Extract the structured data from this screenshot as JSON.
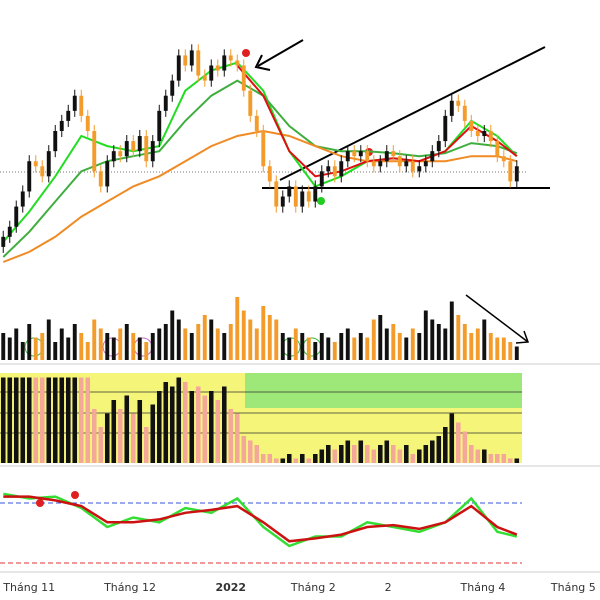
{
  "chart_data": {
    "type": "candlestick",
    "xlim": [
      -0.5,
      91.8
    ],
    "xticks": [
      {
        "value": 4,
        "label": "Tháng 11"
      },
      {
        "value": 19.5,
        "label": "Tháng 12"
      },
      {
        "value": 35,
        "label": "2022"
      },
      {
        "value": 47.7,
        "label": "Tháng 2"
      },
      {
        "value": 59.2,
        "label": "2"
      },
      {
        "value": 73.8,
        "label": "Tháng 4"
      },
      {
        "value": 87.7,
        "label": "Tháng 5"
      }
    ],
    "ylim": [
      0,
      260
    ],
    "up_color": "#111111",
    "down_color": "#f39c2b",
    "open": [
      15,
      25,
      35,
      55,
      70,
      100,
      95,
      85,
      110,
      130,
      140,
      150,
      165,
      145,
      130,
      90,
      75,
      100,
      110,
      105,
      120,
      110,
      125,
      100,
      120,
      150,
      165,
      180,
      205,
      195,
      210,
      185,
      180,
      195,
      190,
      205,
      200,
      195,
      170,
      145,
      130,
      95,
      80,
      55,
      65,
      75,
      55,
      70,
      60,
      75,
      90,
      95,
      85,
      100,
      110,
      105,
      110,
      100,
      95,
      100,
      110,
      105,
      95,
      100,
      90,
      95,
      100,
      110,
      120,
      145,
      160,
      155,
      140,
      130,
      125,
      130,
      120,
      105,
      100,
      80
    ],
    "high": [
      31,
      41,
      61,
      76,
      106,
      106,
      101,
      116,
      136,
      146,
      156,
      171,
      171,
      151,
      136,
      96,
      106,
      116,
      116,
      126,
      126,
      131,
      131,
      126,
      156,
      171,
      186,
      211,
      211,
      216,
      216,
      191,
      201,
      201,
      211,
      211,
      206,
      201,
      176,
      151,
      136,
      101,
      86,
      71,
      81,
      81,
      76,
      76,
      81,
      96,
      101,
      101,
      106,
      116,
      116,
      116,
      116,
      106,
      106,
      116,
      116,
      111,
      106,
      106,
      101,
      106,
      116,
      126,
      151,
      166,
      166,
      161,
      146,
      136,
      136,
      136,
      126,
      111,
      106,
      101
    ],
    "low": [
      9,
      19,
      29,
      49,
      64,
      89,
      79,
      79,
      104,
      124,
      134,
      144,
      139,
      124,
      84,
      69,
      69,
      94,
      99,
      99,
      104,
      104,
      94,
      94,
      114,
      144,
      159,
      174,
      189,
      189,
      179,
      174,
      174,
      184,
      184,
      194,
      189,
      164,
      139,
      124,
      89,
      74,
      49,
      49,
      59,
      49,
      49,
      54,
      54,
      69,
      84,
      79,
      79,
      94,
      99,
      99,
      94,
      89,
      89,
      94,
      99,
      89,
      89,
      84,
      84,
      89,
      94,
      104,
      114,
      139,
      149,
      134,
      124,
      119,
      119,
      114,
      99,
      94,
      74,
      74
    ],
    "close": [
      25,
      35,
      55,
      70,
      100,
      95,
      85,
      110,
      130,
      140,
      150,
      165,
      145,
      130,
      90,
      75,
      100,
      110,
      105,
      120,
      110,
      125,
      100,
      120,
      150,
      165,
      180,
      205,
      195,
      210,
      185,
      180,
      195,
      190,
      205,
      200,
      195,
      170,
      145,
      130,
      95,
      80,
      55,
      65,
      75,
      55,
      70,
      60,
      75,
      90,
      95,
      85,
      100,
      110,
      105,
      110,
      100,
      95,
      100,
      110,
      105,
      95,
      100,
      90,
      95,
      100,
      110,
      120,
      145,
      160,
      155,
      140,
      130,
      125,
      130,
      120,
      105,
      100,
      80,
      95
    ],
    "series": [
      {
        "color": "#22dd22",
        "x": [
          0,
          4,
          8,
          12,
          16,
          20,
          24,
          28,
          32,
          36,
          40,
          44,
          48,
          52,
          56,
          60,
          64,
          68,
          72,
          76,
          79
        ],
        "values": [
          20,
          50,
          85,
          125,
          115,
          110,
          115,
          170,
          190,
          198,
          170,
          110,
          75,
          85,
          100,
          103,
          100,
          110,
          140,
          125,
          105
        ]
      },
      {
        "color": "#3fae3f",
        "x": [
          0,
          4,
          8,
          12,
          16,
          20,
          24,
          28,
          32,
          36,
          40,
          44,
          48,
          52,
          56,
          60,
          64,
          68,
          72,
          76,
          79
        ],
        "values": [
          5,
          30,
          60,
          90,
          100,
          105,
          110,
          140,
          165,
          180,
          165,
          135,
          115,
          110,
          110,
          108,
          105,
          108,
          118,
          115,
          108
        ]
      },
      {
        "color": "#f08a24",
        "x": [
          0,
          4,
          8,
          12,
          16,
          20,
          24,
          28,
          32,
          36,
          40,
          44,
          48,
          52,
          56,
          60,
          64,
          68,
          72,
          76,
          79
        ],
        "values": [
          0,
          10,
          25,
          45,
          60,
          75,
          85,
          100,
          115,
          125,
          130,
          125,
          115,
          105,
          100,
          100,
          100,
          100,
          105,
          105,
          100
        ]
      },
      {
        "color": "#dd1111",
        "x": [
          36,
          40,
          44,
          48,
          52,
          56,
          60,
          64,
          68,
          72,
          76,
          79
        ],
        "values": [
          195,
          165,
          110,
          85,
          90,
          100,
          103,
          100,
          110,
          135,
          120,
          105
        ]
      }
    ],
    "volume": {
      "ylim": [
        0,
        100
      ],
      "values": [
        30,
        25,
        35,
        20,
        40,
        25,
        30,
        45,
        20,
        35,
        25,
        40,
        30,
        20,
        45,
        35,
        30,
        25,
        35,
        40,
        30,
        25,
        20,
        30,
        35,
        40,
        55,
        45,
        35,
        30,
        40,
        50,
        45,
        35,
        30,
        40,
        70,
        55,
        45,
        35,
        60,
        50,
        45,
        30,
        25,
        35,
        30,
        25,
        20,
        30,
        25,
        20,
        30,
        35,
        25,
        30,
        25,
        45,
        50,
        35,
        40,
        30,
        25,
        35,
        30,
        55,
        45,
        40,
        35,
        65,
        50,
        40,
        30,
        35,
        45,
        30,
        25,
        25,
        20,
        15
      ]
    },
    "indicator": {
      "ylim": [
        0,
        100
      ],
      "values": [
        95,
        95,
        95,
        95,
        95,
        95,
        95,
        95,
        95,
        95,
        95,
        95,
        95,
        95,
        60,
        40,
        55,
        70,
        60,
        75,
        55,
        70,
        40,
        65,
        80,
        90,
        85,
        95,
        90,
        80,
        85,
        75,
        80,
        70,
        85,
        60,
        55,
        30,
        25,
        20,
        10,
        10,
        5,
        5,
        10,
        5,
        10,
        5,
        10,
        15,
        20,
        15,
        20,
        25,
        20,
        25,
        20,
        15,
        20,
        25,
        20,
        15,
        20,
        10,
        15,
        20,
        25,
        30,
        40,
        55,
        45,
        35,
        20,
        15,
        15,
        10,
        10,
        10,
        5,
        5
      ]
    },
    "oscillator": {
      "ylim": [
        0,
        100
      ],
      "series": [
        {
          "color": "#33dd33",
          "x": [
            0,
            4,
            8,
            12,
            16,
            20,
            24,
            28,
            32,
            36,
            40,
            44,
            48,
            52,
            56,
            60,
            64,
            68,
            72,
            76,
            79
          ],
          "values": [
            75,
            70,
            72,
            60,
            40,
            50,
            45,
            60,
            55,
            70,
            40,
            20,
            30,
            30,
            45,
            40,
            35,
            45,
            70,
            35,
            30
          ]
        },
        {
          "color": "#cc1111",
          "x": [
            0,
            4,
            8,
            12,
            16,
            20,
            24,
            28,
            32,
            36,
            40,
            44,
            48,
            52,
            56,
            60,
            64,
            68,
            72,
            76,
            79
          ],
          "values": [
            72,
            72,
            68,
            62,
            45,
            45,
            48,
            55,
            58,
            62,
            45,
            25,
            28,
            32,
            40,
            42,
            38,
            45,
            62,
            40,
            32
          ]
        }
      ]
    }
  }
}
